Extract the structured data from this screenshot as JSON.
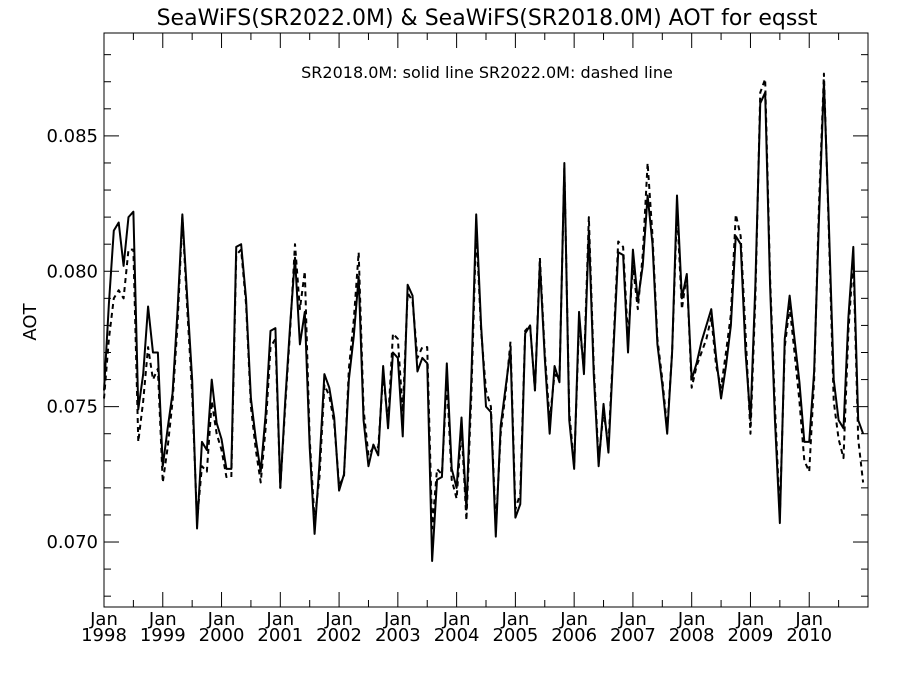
{
  "chart_data": {
    "type": "line",
    "title": "SeaWiFS(SR2022.0M) & SeaWiFS(SR2018.0M)  AOT for eqsst",
    "ylabel": "AOT",
    "annotation": "SR2018.0M: solid line   SR2022.0M: dashed line",
    "x_tick_labels": [
      {
        "month": "Jan",
        "year": "1998"
      },
      {
        "month": "Jan",
        "year": "1999"
      },
      {
        "month": "Jan",
        "year": "2000"
      },
      {
        "month": "Jan",
        "year": "2001"
      },
      {
        "month": "Jan",
        "year": "2002"
      },
      {
        "month": "Jan",
        "year": "2003"
      },
      {
        "month": "Jan",
        "year": "2004"
      },
      {
        "month": "Jan",
        "year": "2005"
      },
      {
        "month": "Jan",
        "year": "2006"
      },
      {
        "month": "Jan",
        "year": "2007"
      },
      {
        "month": "Jan",
        "year": "2008"
      },
      {
        "month": "Jan",
        "year": "2009"
      },
      {
        "month": "Jan",
        "year": "2010"
      }
    ],
    "y_ticks": [
      "0.070",
      "0.075",
      "0.080",
      "0.085"
    ],
    "ylim": [
      0.0676,
      0.0888
    ],
    "xlim": [
      "1998-01",
      "2010-12"
    ],
    "grid": false,
    "series": [
      {
        "name": "SR2018.0M",
        "style": "solid",
        "color": "#000000",
        "x": [
          "1998-01",
          "1998-02",
          "1998-03",
          "1998-04",
          "1998-05",
          "1998-06",
          "1998-07",
          "1998-08",
          "1998-09",
          "1998-10",
          "1998-11",
          "1998-12",
          "1999-01",
          "1999-02",
          "1999-03",
          "1999-04",
          "1999-05",
          "1999-06",
          "1999-07",
          "1999-08",
          "1999-09",
          "1999-10",
          "1999-11",
          "1999-12",
          "2000-01",
          "2000-02",
          "2000-03",
          "2000-04",
          "2000-05",
          "2000-06",
          "2000-07",
          "2000-08",
          "2000-09",
          "2000-10",
          "2000-11",
          "2000-12",
          "2001-01",
          "2001-02",
          "2001-03",
          "2001-04",
          "2001-05",
          "2001-06",
          "2001-07",
          "2001-08",
          "2001-09",
          "2001-10",
          "2001-11",
          "2001-12",
          "2002-01",
          "2002-02",
          "2002-03",
          "2002-04",
          "2002-05",
          "2002-06",
          "2002-07",
          "2002-08",
          "2002-09",
          "2002-10",
          "2002-11",
          "2002-12",
          "2003-01",
          "2003-02",
          "2003-03",
          "2003-04",
          "2003-05",
          "2003-06",
          "2003-07",
          "2003-08",
          "2003-09",
          "2003-10",
          "2003-11",
          "2003-12",
          "2004-01",
          "2004-02",
          "2004-03",
          "2004-04",
          "2004-05",
          "2004-06",
          "2004-07",
          "2004-08",
          "2004-09",
          "2004-10",
          "2004-11",
          "2004-12",
          "2005-01",
          "2005-02",
          "2005-03",
          "2005-04",
          "2005-05",
          "2005-06",
          "2005-07",
          "2005-08",
          "2005-09",
          "2005-10",
          "2005-11",
          "2005-12",
          "2006-01",
          "2006-02",
          "2006-03",
          "2006-04",
          "2006-05",
          "2006-06",
          "2006-07",
          "2006-08",
          "2006-09",
          "2006-10",
          "2006-11",
          "2006-12",
          "2007-01",
          "2007-02",
          "2007-03",
          "2007-04",
          "2007-05",
          "2007-06",
          "2007-07",
          "2007-08",
          "2007-09",
          "2007-10",
          "2007-11",
          "2007-12",
          "2008-01",
          "2008-02",
          "2008-03",
          "2008-04",
          "2008-05",
          "2008-06",
          "2008-07",
          "2008-08",
          "2008-09",
          "2008-10",
          "2008-11",
          "2008-12",
          "2009-01",
          "2009-02",
          "2009-03",
          "2009-04",
          "2009-05",
          "2009-06",
          "2009-07",
          "2009-08",
          "2009-09",
          "2009-10",
          "2009-11",
          "2009-12",
          "2010-01",
          "2010-02",
          "2010-03",
          "2010-04",
          "2010-05",
          "2010-06",
          "2010-07",
          "2010-08",
          "2010-09",
          "2010-10",
          "2010-11",
          "2010-12"
        ],
        "values": [
          0.0756,
          0.0788,
          0.0815,
          0.0818,
          0.0802,
          0.082,
          0.0822,
          0.0749,
          0.0762,
          0.0787,
          0.077,
          0.077,
          0.0728,
          0.0742,
          0.0755,
          0.0785,
          0.0821,
          0.079,
          0.076,
          0.0705,
          0.0737,
          0.0734,
          0.076,
          0.0744,
          0.0738,
          0.0727,
          0.0727,
          0.0809,
          0.081,
          0.079,
          0.0753,
          0.0738,
          0.0726,
          0.0747,
          0.0778,
          0.0779,
          0.072,
          0.0752,
          0.078,
          0.0805,
          0.0773,
          0.0785,
          0.0735,
          0.0703,
          0.0729,
          0.0762,
          0.0757,
          0.0746,
          0.0719,
          0.0725,
          0.076,
          0.0776,
          0.0798,
          0.0745,
          0.0728,
          0.0736,
          0.0732,
          0.0765,
          0.0742,
          0.077,
          0.0768,
          0.0739,
          0.0795,
          0.0791,
          0.0763,
          0.0768,
          0.0766,
          0.0693,
          0.0723,
          0.0724,
          0.0766,
          0.0727,
          0.072,
          0.0746,
          0.0712,
          0.076,
          0.0821,
          0.078,
          0.075,
          0.0748,
          0.0702,
          0.0743,
          0.0757,
          0.0771,
          0.0709,
          0.0714,
          0.0777,
          0.078,
          0.0756,
          0.0803,
          0.0768,
          0.074,
          0.0765,
          0.0759,
          0.084,
          0.0745,
          0.0727,
          0.0785,
          0.0762,
          0.0815,
          0.0762,
          0.0728,
          0.0751,
          0.0733,
          0.077,
          0.0807,
          0.0806,
          0.077,
          0.0808,
          0.0789,
          0.0802,
          0.0828,
          0.081,
          0.0773,
          0.0758,
          0.074,
          0.077,
          0.0828,
          0.079,
          0.0799,
          0.076,
          0.0766,
          0.0774,
          0.078,
          0.0786,
          0.0768,
          0.0753,
          0.0765,
          0.078,
          0.0813,
          0.081,
          0.077,
          0.0745,
          0.0795,
          0.0862,
          0.0866,
          0.0795,
          0.0745,
          0.0707,
          0.0775,
          0.0791,
          0.0775,
          0.0759,
          0.0737,
          0.0737,
          0.0763,
          0.082,
          0.087,
          0.0818,
          0.076,
          0.0745,
          0.0742,
          0.0783,
          0.0809,
          0.0745,
          0.074
        ]
      },
      {
        "name": "SR2022.0M",
        "style": "dashed",
        "color": "#000000",
        "x": [
          "1998-01",
          "1998-02",
          "1998-03",
          "1998-04",
          "1998-05",
          "1998-06",
          "1998-07",
          "1998-08",
          "1998-09",
          "1998-10",
          "1998-11",
          "1998-12",
          "1999-01",
          "1999-02",
          "1999-03",
          "1999-04",
          "1999-05",
          "1999-06",
          "1999-07",
          "1999-08",
          "1999-09",
          "1999-10",
          "1999-11",
          "1999-12",
          "2000-01",
          "2000-02",
          "2000-03",
          "2000-04",
          "2000-05",
          "2000-06",
          "2000-07",
          "2000-08",
          "2000-09",
          "2000-10",
          "2000-11",
          "2000-12",
          "2001-01",
          "2001-02",
          "2001-03",
          "2001-04",
          "2001-05",
          "2001-06",
          "2001-07",
          "2001-08",
          "2001-09",
          "2001-10",
          "2001-11",
          "2001-12",
          "2002-01",
          "2002-02",
          "2002-03",
          "2002-04",
          "2002-05",
          "2002-06",
          "2002-07",
          "2002-08",
          "2002-09",
          "2002-10",
          "2002-11",
          "2002-12",
          "2003-01",
          "2003-02",
          "2003-03",
          "2003-04",
          "2003-05",
          "2003-06",
          "2003-07",
          "2003-08",
          "2003-09",
          "2003-10",
          "2003-11",
          "2003-12",
          "2004-01",
          "2004-02",
          "2004-03",
          "2004-04",
          "2004-05",
          "2004-06",
          "2004-07",
          "2004-08",
          "2004-09",
          "2004-10",
          "2004-11",
          "2004-12",
          "2005-01",
          "2005-02",
          "2005-03",
          "2005-04",
          "2005-05",
          "2005-06",
          "2005-07",
          "2005-08",
          "2005-09",
          "2005-10",
          "2005-11",
          "2005-12",
          "2006-01",
          "2006-02",
          "2006-03",
          "2006-04",
          "2006-05",
          "2006-06",
          "2006-07",
          "2006-08",
          "2006-09",
          "2006-10",
          "2006-11",
          "2006-12",
          "2007-01",
          "2007-02",
          "2007-03",
          "2007-04",
          "2007-05",
          "2007-06",
          "2007-07",
          "2007-08",
          "2007-09",
          "2007-10",
          "2007-11",
          "2007-12",
          "2008-01",
          "2008-02",
          "2008-03",
          "2008-04",
          "2008-05",
          "2008-06",
          "2008-07",
          "2008-08",
          "2008-09",
          "2008-10",
          "2008-11",
          "2008-12",
          "2009-01",
          "2009-02",
          "2009-03",
          "2009-04",
          "2009-05",
          "2009-06",
          "2009-07",
          "2009-08",
          "2009-09",
          "2009-10",
          "2009-11",
          "2009-12",
          "2010-01",
          "2010-02",
          "2010-03",
          "2010-04",
          "2010-05",
          "2010-06",
          "2010-07",
          "2010-08",
          "2010-09",
          "2010-10",
          "2010-11",
          "2010-12"
        ],
        "values": [
          0.0753,
          0.0775,
          0.079,
          0.0793,
          0.079,
          0.0808,
          0.0808,
          0.0737,
          0.0752,
          0.0772,
          0.076,
          0.0764,
          0.0722,
          0.0735,
          0.0752,
          0.078,
          0.082,
          0.0786,
          0.0755,
          0.0708,
          0.0728,
          0.0726,
          0.0752,
          0.074,
          0.0734,
          0.0724,
          0.0724,
          0.0806,
          0.0808,
          0.0788,
          0.075,
          0.0734,
          0.0722,
          0.0742,
          0.0772,
          0.0775,
          0.072,
          0.075,
          0.0778,
          0.081,
          0.0786,
          0.08,
          0.0738,
          0.0708,
          0.0724,
          0.0758,
          0.0754,
          0.0744,
          0.0721,
          0.0724,
          0.0764,
          0.0782,
          0.0807,
          0.0749,
          0.0732,
          0.0735,
          0.0735,
          0.0762,
          0.0744,
          0.0777,
          0.0775,
          0.0748,
          0.0792,
          0.0789,
          0.0768,
          0.0772,
          0.0772,
          0.0705,
          0.0727,
          0.0725,
          0.076,
          0.0723,
          0.0716,
          0.0742,
          0.0708,
          0.0754,
          0.0816,
          0.0778,
          0.0756,
          0.075,
          0.0705,
          0.074,
          0.0755,
          0.0774,
          0.0712,
          0.0718,
          0.0778,
          0.078,
          0.0756,
          0.0805,
          0.077,
          0.0745,
          0.0762,
          0.076,
          0.0838,
          0.0748,
          0.0728,
          0.0781,
          0.0764,
          0.082,
          0.0765,
          0.073,
          0.0748,
          0.0736,
          0.0772,
          0.0811,
          0.0809,
          0.0775,
          0.0802,
          0.0786,
          0.0806,
          0.084,
          0.0813,
          0.0775,
          0.076,
          0.0742,
          0.077,
          0.0823,
          0.0786,
          0.0799,
          0.0757,
          0.0765,
          0.077,
          0.0775,
          0.0783,
          0.0765,
          0.0757,
          0.077,
          0.0784,
          0.0821,
          0.0813,
          0.0777,
          0.074,
          0.079,
          0.0866,
          0.0871,
          0.0798,
          0.075,
          0.071,
          0.0772,
          0.0787,
          0.077,
          0.0752,
          0.073,
          0.0726,
          0.076,
          0.0825,
          0.0873,
          0.0815,
          0.0752,
          0.0738,
          0.0731,
          0.0778,
          0.0805,
          0.0738,
          0.0722
        ]
      }
    ]
  }
}
